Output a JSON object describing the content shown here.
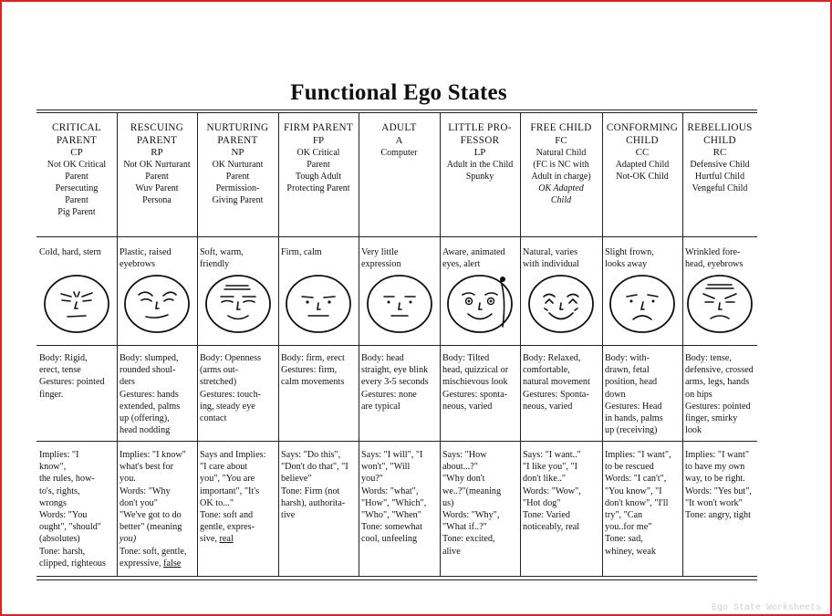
{
  "title": "Functional Ego States",
  "watermark": "Ego State Worksheets",
  "columns": [
    {
      "id": "cp",
      "name_lines": [
        "CRITICAL",
        "PARENT"
      ],
      "abbr": "CP",
      "desc_lines": [
        "Not OK Critical",
        "Parent",
        "Persecuting",
        "Parent",
        "Pig Parent"
      ],
      "face_desc": [
        "Cold, hard, stern"
      ],
      "body_lines": [
        "Body: Rigid,",
        "erect, tense",
        "Gestures: pointed",
        "finger."
      ],
      "implies_lines": [
        "Implies: \"I",
        "know\",",
        "the rules, how-",
        "to's, rights,",
        "wrongs",
        "Words: \"You",
        "ought\", \"should\"",
        "(absolutes)",
        "Tone: harsh,",
        "clipped, righteous"
      ]
    },
    {
      "id": "rp",
      "name_lines": [
        "RESCUING",
        "PARENT"
      ],
      "abbr": "RP",
      "desc_lines": [
        "Not OK Nurturant",
        "Parent",
        "Wuv Parent",
        "Persona"
      ],
      "face_desc": [
        "Plastic, raised",
        "eyebrows"
      ],
      "body_lines": [
        "Body: slumped,",
        "rounded shoul-",
        "ders",
        "Gestures: hands",
        "extended, palms",
        "up (offering),",
        "head nodding"
      ],
      "implies_lines": [
        "Implies: \"I know\"",
        "what's best for",
        "you.",
        "Words: \"Why",
        "don't you\"",
        "\"We've got to do",
        "better\" (meaning",
        "you)",
        "Tone: soft, gentle,",
        "expressive, false"
      ]
    },
    {
      "id": "np",
      "name_lines": [
        "NURTURING",
        "PARENT"
      ],
      "abbr": "NP",
      "desc_lines": [
        "OK Nurturant",
        "Parent",
        "Permission-",
        "Giving Parent"
      ],
      "face_desc": [
        "Soft, warm,",
        "friendly"
      ],
      "body_lines": [
        "Body: Openness",
        "(arms    out-",
        "stretched)",
        "Gestures: touch-",
        "ing, steady eye",
        "contact"
      ],
      "implies_lines": [
        "Says and Implies:",
        "\"I care about",
        "you\", \"You are",
        "important\", \"It's",
        "OK to...\"",
        "Tone: soft and",
        "gentle, expres-",
        "sive, real"
      ]
    },
    {
      "id": "fp",
      "name_lines": [
        "FIRM PARENT"
      ],
      "abbr": "FP",
      "desc_lines": [
        "OK Critical",
        "Parent",
        "Tough Adult",
        "Protecting Parent"
      ],
      "face_desc": [
        "Firm, calm"
      ],
      "body_lines": [
        "Body: firm, erect",
        "Gestures: firm,",
        "calm movements"
      ],
      "implies_lines": [
        "Says: \"Do this\",",
        "\"Don't do that\", \"I",
        "believe\"",
        "Tone: Firm (not",
        "harsh), authorita-",
        "tive"
      ]
    },
    {
      "id": "a",
      "name_lines": [
        "ADULT"
      ],
      "abbr": "A",
      "desc_lines": [
        "Computer"
      ],
      "face_desc": [
        "Very little",
        "expression"
      ],
      "body_lines": [
        "Body: head",
        "straight, eye blink",
        "every 3-5 seconds",
        "Gestures: none",
        "are typical"
      ],
      "implies_lines": [
        "Says: \"I will\", \"I",
        "won't\", \"Will",
        "you?\"",
        "Words: \"what\",",
        "\"How\", \"Which\",",
        "\"Who\", \"When\"",
        "Tone: somewhat",
        "cool, unfeeling"
      ]
    },
    {
      "id": "lp",
      "name_lines": [
        "LITTLE PRO-",
        "FESSOR"
      ],
      "abbr": "LP",
      "desc_lines": [
        "Adult in the Child",
        "Spunky"
      ],
      "face_desc": [
        "Aware, animated",
        "eyes, alert"
      ],
      "body_lines": [
        "Body: Tilted",
        "head, quizzical or",
        "mischievous look",
        "Gestures: sponta-",
        "neous, varied"
      ],
      "implies_lines": [
        "Says: \"How",
        "about...?\"",
        "\"Why don't",
        "we..?\"(meaning",
        "us)",
        "Words: \"Why\",",
        "\"What if..?\"",
        "Tone: excited,",
        "alive"
      ]
    },
    {
      "id": "fc",
      "name_lines": [
        "FREE CHILD"
      ],
      "abbr": "FC",
      "desc_lines": [
        "Natural Child",
        "(FC is NC with",
        "Adult in charge)"
      ],
      "desc_italic_lines": [
        "OK Adapted",
        "Child"
      ],
      "face_desc": [
        "Natural, varies",
        "with individual"
      ],
      "body_lines": [
        "Body: Relaxed,",
        "comfortable,",
        "natural movement",
        "Gestures: Sponta-",
        "neous, varied"
      ],
      "implies_lines": [
        "Says: \"I want..\"",
        "\"I like you\", \"I",
        "don't like..\"",
        "Words: \"Wow\",",
        "\"Hot dog\"",
        "Tone: Varied",
        "noticeably, real"
      ]
    },
    {
      "id": "cc",
      "name_lines": [
        "CONFORMING",
        "CHILD"
      ],
      "abbr": "CC",
      "desc_lines": [
        "Adapted Child",
        "Not-OK Child"
      ],
      "face_desc": [
        "Slight frown,",
        "looks away"
      ],
      "body_lines": [
        "Body: with-",
        "drawn, fetal",
        "position, head",
        "down",
        "Gestures: Head",
        "in hands, palms",
        "up (receiving)"
      ],
      "implies_lines": [
        "Implies: \"I want\",",
        "to be rescued",
        "Words: \"I can't\",",
        "\"You know\", \"I",
        "don't know\", \"I'll",
        "try\", \"Can",
        "you..for me\"",
        "Tone: sad,",
        "whiney, weak"
      ]
    },
    {
      "id": "rc",
      "name_lines": [
        "REBELLIOUS",
        "CHILD"
      ],
      "abbr": "RC",
      "desc_lines": [
        "Defensive Child",
        "Hurtful Child",
        "Vengeful Child"
      ],
      "face_desc": [
        "Wrinkled fore-",
        "head, eyebrows"
      ],
      "body_lines": [
        "Body: tense,",
        "defensive, crossed",
        "arms, legs, hands",
        "on hips",
        "Gestures: pointed",
        "finger, smirky",
        "look"
      ],
      "implies_lines": [
        "Implies: \"I want\"",
        "to have my own",
        "way, to be right.",
        "Words: \"Yes but\",",
        "\"It won't work\"",
        "Tone: angry, tight"
      ]
    }
  ]
}
